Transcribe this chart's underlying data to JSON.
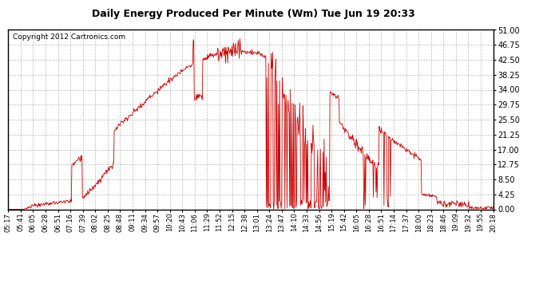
{
  "title": "Daily Energy Produced Per Minute (Wm) Tue Jun 19 20:33",
  "copyright": "Copyright 2012 Cartronics.com",
  "line_color": "#cc0000",
  "background_color": "#ffffff",
  "plot_bg_color": "#ffffff",
  "grid_color": "#aaaaaa",
  "yticks": [
    0.0,
    4.25,
    8.5,
    12.75,
    17.0,
    21.25,
    25.5,
    29.75,
    34.0,
    38.25,
    42.5,
    46.75,
    51.0
  ],
  "ylim": [
    0.0,
    51.0
  ],
  "xtick_labels": [
    "05:17",
    "05:41",
    "06:05",
    "06:28",
    "06:51",
    "07:16",
    "07:39",
    "08:02",
    "08:25",
    "08:48",
    "09:11",
    "09:34",
    "09:57",
    "10:20",
    "10:43",
    "11:06",
    "11:29",
    "11:52",
    "12:15",
    "12:38",
    "13:01",
    "13:24",
    "13:47",
    "14:10",
    "14:33",
    "14:56",
    "15:19",
    "15:42",
    "16:05",
    "16:28",
    "16:51",
    "17:14",
    "17:37",
    "18:00",
    "18:23",
    "18:46",
    "19:09",
    "19:32",
    "19:55",
    "20:18"
  ],
  "num_points": 916
}
